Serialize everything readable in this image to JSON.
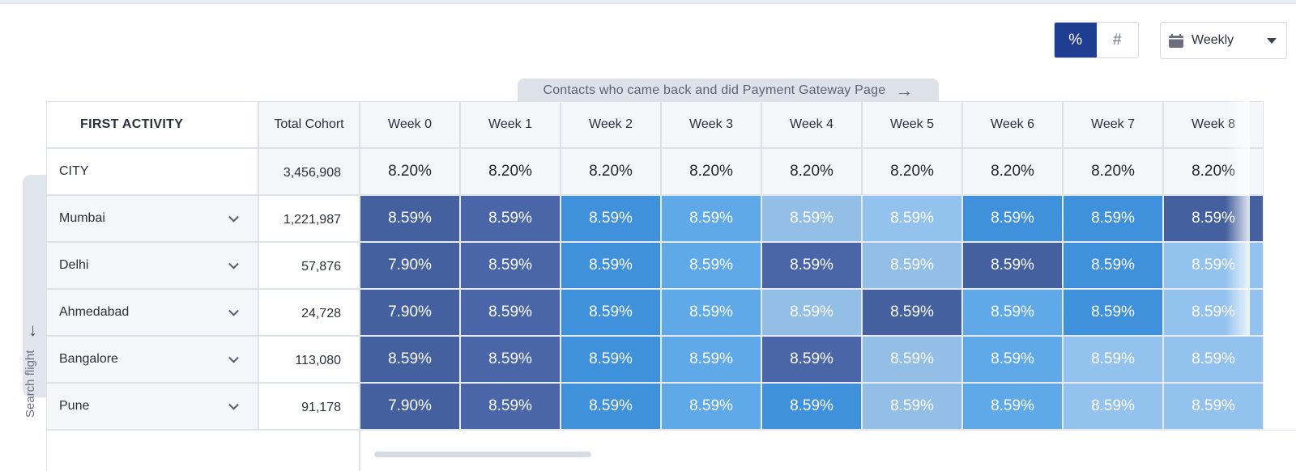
{
  "controls": {
    "percent_label": "%",
    "count_label": "#",
    "frequency_label": "Weekly"
  },
  "banner": {
    "text": "Contacts who came back and did Payment Gateway Page"
  },
  "side_tab": {
    "label": "Search flight"
  },
  "table": {
    "first_col_header": "FIRST ACTIVITY",
    "total_header": "Total Cohort",
    "weeks": [
      "Week 0",
      "Week 1",
      "Week 2",
      "Week 3",
      "Week 4",
      "Week 5",
      "Week 6",
      "Week 7",
      "Week 8"
    ],
    "summary": {
      "label": "CITY",
      "total": "3,456,908",
      "values": [
        "8.20%",
        "8.20%",
        "8.20%",
        "8.20%",
        "8.20%",
        "8.20%",
        "8.20%",
        "8.20%",
        "8.20%"
      ]
    },
    "rows": [
      {
        "city": "Mumbai",
        "total": "1,221,987",
        "values": [
          "8.59%",
          "8.59%",
          "8.59%",
          "8.59%",
          "8.59%",
          "8.59%",
          "8.59%",
          "8.59%",
          "8.59%"
        ],
        "levels": [
          6,
          5,
          3,
          2,
          1,
          0,
          3,
          3,
          6
        ]
      },
      {
        "city": "Delhi",
        "total": "57,876",
        "values": [
          "7.90%",
          "8.59%",
          "8.59%",
          "8.59%",
          "8.59%",
          "8.59%",
          "8.59%",
          "8.59%",
          "8.59%"
        ],
        "levels": [
          6,
          5,
          3,
          2,
          5,
          1,
          6,
          3,
          0
        ]
      },
      {
        "city": "Ahmedabad",
        "total": "24,728",
        "values": [
          "7.90%",
          "8.59%",
          "8.59%",
          "8.59%",
          "8.59%",
          "8.59%",
          "8.59%",
          "8.59%",
          "8.59%"
        ],
        "levels": [
          6,
          5,
          3,
          2,
          1,
          6,
          2,
          3,
          0
        ]
      },
      {
        "city": "Bangalore",
        "total": "113,080",
        "values": [
          "8.59%",
          "8.59%",
          "8.59%",
          "8.59%",
          "8.59%",
          "8.59%",
          "8.59%",
          "8.59%",
          "8.59%"
        ],
        "levels": [
          6,
          5,
          3,
          2,
          5,
          1,
          2,
          0,
          0
        ]
      },
      {
        "city": "Pune",
        "total": "91,178",
        "values": [
          "7.90%",
          "8.59%",
          "8.59%",
          "8.59%",
          "8.59%",
          "8.59%",
          "8.59%",
          "8.59%",
          "8.59%"
        ],
        "levels": [
          6,
          5,
          3,
          2,
          3,
          1,
          2,
          0,
          0
        ]
      }
    ]
  },
  "colors": {
    "active_toggle": "#1f3d91",
    "heat_scale": [
      "#94c2ee",
      "#93bfe7",
      "#5fa9e8",
      "#3f91db",
      "#4a6eb8",
      "#4a66a8",
      "#44609f"
    ]
  }
}
